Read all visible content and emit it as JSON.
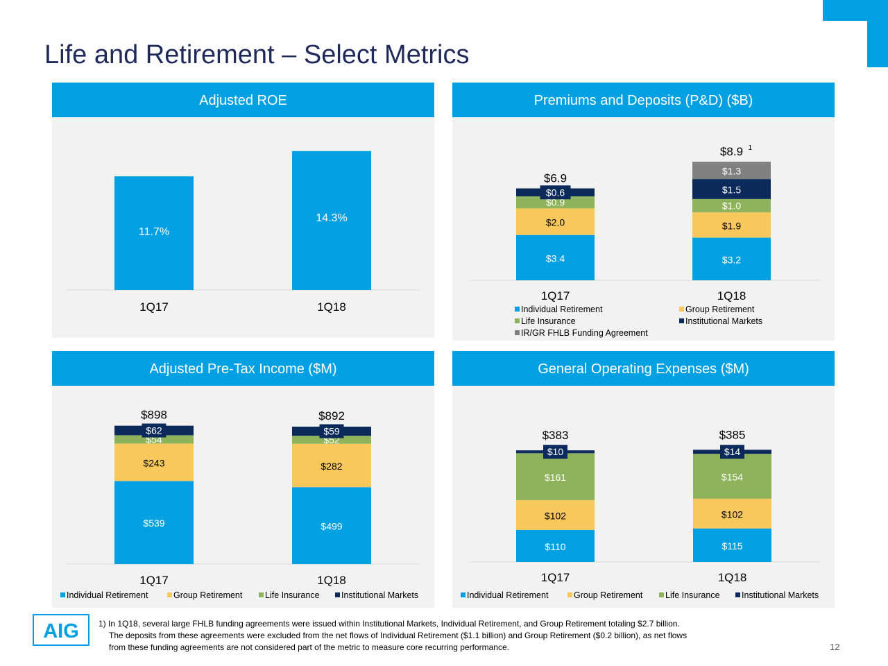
{
  "page": {
    "title": "Life and Retirement – Select Metrics",
    "page_number": "12",
    "logo_text": "AIG",
    "footnote": [
      "1) In 1Q18, several large FHLB funding agreements were issued within Institutional Markets, Individual Retirement, and Group Retirement totaling $2.7 billion.",
      "The deposits from these agreements were excluded from the net flows of Individual Retirement ($1.1 billion) and Group Retirement ($0.2 billion), as net flows",
      "from these funding agreements are not considered part of the metric to measure core recurring performance."
    ]
  },
  "colors": {
    "Individual Retirement": "#00a0e3",
    "Group Retirement": "#f9c85c",
    "Life Insurance": "#8fb35a",
    "Institutional Markets": "#0b2a5b",
    "IR/GR FHLB Funding Agreement": "#808080"
  },
  "chart_data": [
    {
      "id": "roe",
      "type": "bar",
      "title": "Adjusted ROE",
      "categories": [
        "1Q17",
        "1Q18"
      ],
      "values": [
        11.7,
        14.3
      ],
      "labels": [
        "11.7%",
        "14.3%"
      ],
      "ylim": [
        0,
        16
      ]
    },
    {
      "id": "pd",
      "type": "bar",
      "stacked": true,
      "title": "Premiums and Deposits (P&D) ($B)",
      "categories": [
        "1Q17",
        "1Q18"
      ],
      "series": [
        {
          "name": "Individual Retirement",
          "values": [
            3.4,
            3.2
          ],
          "labels": [
            "$3.4",
            "$3.2"
          ]
        },
        {
          "name": "Group Retirement",
          "values": [
            2.0,
            1.9
          ],
          "labels": [
            "$2.0",
            "$1.9"
          ]
        },
        {
          "name": "Life Insurance",
          "values": [
            0.9,
            1.0
          ],
          "labels": [
            "$0.9",
            "$1.0"
          ]
        },
        {
          "name": "Institutional Markets",
          "values": [
            0.6,
            1.5
          ],
          "labels": [
            "$0.6",
            "$1.5"
          ]
        },
        {
          "name": "IR/GR FHLB Funding Agreement",
          "values": [
            0,
            1.3
          ],
          "labels": [
            "",
            "$1.3"
          ]
        }
      ],
      "totals": [
        "$6.9",
        "$8.9"
      ],
      "total_superscripts": [
        "",
        "1"
      ],
      "legend": [
        "Individual Retirement",
        "Group Retirement",
        "Life Insurance",
        "Institutional Markets",
        "IR/GR FHLB Funding Agreement"
      ],
      "legend_position": "bottom"
    },
    {
      "id": "pti",
      "type": "bar",
      "stacked": true,
      "title": "Adjusted Pre-Tax Income ($M)",
      "categories": [
        "1Q17",
        "1Q18"
      ],
      "series": [
        {
          "name": "Individual Retirement",
          "values": [
            539,
            499
          ],
          "labels": [
            "$539",
            "$499"
          ]
        },
        {
          "name": "Group Retirement",
          "values": [
            243,
            282
          ],
          "labels": [
            "$243",
            "$282"
          ]
        },
        {
          "name": "Life Insurance",
          "values": [
            54,
            52
          ],
          "labels": [
            "$54",
            "$52"
          ]
        },
        {
          "name": "Institutional Markets",
          "values": [
            62,
            59
          ],
          "labels": [
            "$62",
            "$59"
          ]
        }
      ],
      "totals": [
        "$898",
        "$892"
      ],
      "legend": [
        "Individual Retirement",
        "Group Retirement",
        "Life Insurance",
        "Institutional Markets"
      ],
      "legend_position": "bottom"
    },
    {
      "id": "goe",
      "type": "bar",
      "stacked": true,
      "title": "General Operating Expenses ($M)",
      "categories": [
        "1Q17",
        "1Q18"
      ],
      "series": [
        {
          "name": "Individual Retirement",
          "values": [
            110,
            115
          ],
          "labels": [
            "$110",
            "$115"
          ]
        },
        {
          "name": "Group Retirement",
          "values": [
            102,
            102
          ],
          "labels": [
            "$102",
            "$102"
          ]
        },
        {
          "name": "Life Insurance",
          "values": [
            161,
            154
          ],
          "labels": [
            "$161",
            "$154"
          ]
        },
        {
          "name": "Institutional Markets",
          "values": [
            10,
            14
          ],
          "labels": [
            "$10",
            "$14"
          ]
        }
      ],
      "totals": [
        "$383",
        "$385"
      ],
      "legend": [
        "Individual Retirement",
        "Group Retirement",
        "Life Insurance",
        "Institutional Markets"
      ],
      "legend_position": "bottom"
    }
  ]
}
